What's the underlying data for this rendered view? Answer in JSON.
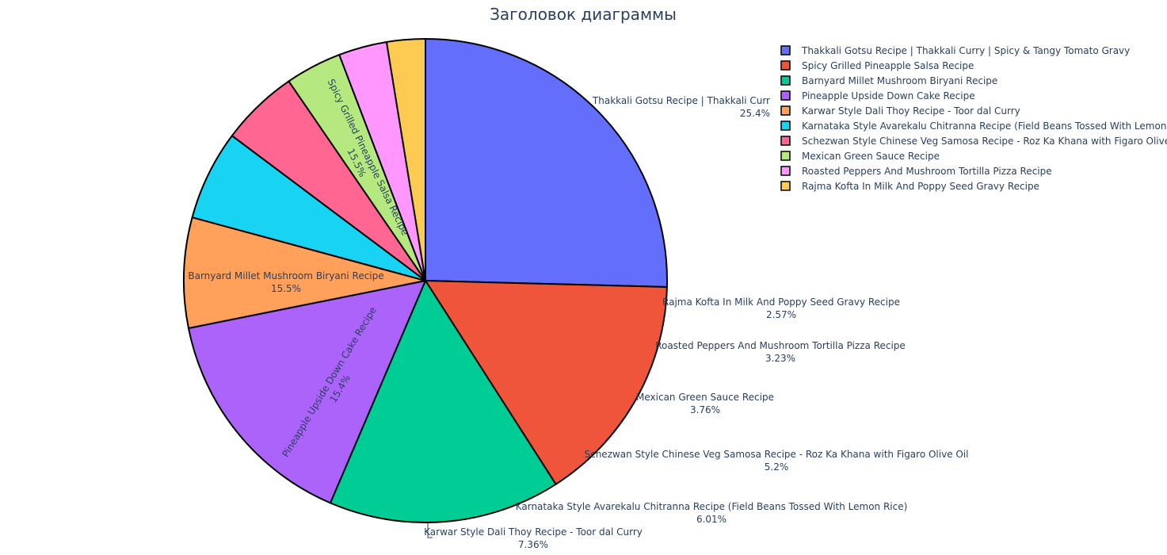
{
  "chart_data": {
    "type": "pie",
    "title": "Заголовок диаграммы",
    "categories": [
      "Thakkali Gotsu Recipe | Thakkali Curry | Spicy & Tangy Tomato Gravy",
      "Spicy Grilled Pineapple Salsa Recipe",
      "Barnyard Millet Mushroom Biryani Recipe",
      "Pineapple Upside Down Cake Recipe",
      "Karwar Style Dali Thoy Recipe - Toor dal Curry",
      "Karnataka Style Avarekalu Chitranna Recipe (Field Beans Tossed With Lemon Rice)",
      "Schezwan Style Chinese Veg Samosa Recipe - Roz Ka Khana with Figaro Olive Oil",
      "Mexican Green Sauce Recipe",
      "Roasted Peppers And Mushroom Tortilla Pizza Recipe",
      "Rajma Kofta In Milk And Poppy Seed Gravy Recipe"
    ],
    "values": [
      25.4,
      15.5,
      15.5,
      15.4,
      7.36,
      6.01,
      5.2,
      3.76,
      3.23,
      2.57
    ],
    "percent_labels": [
      "25.4%",
      "15.5%",
      "15.5%",
      "15.4%",
      "7.36%",
      "6.01%",
      "5.2%",
      "3.76%",
      "3.23%",
      "2.57%"
    ],
    "first_slice_label": "Thakkali Gotsu Recipe | Thakkali Curr",
    "colors": [
      "#636efa",
      "#EF553B",
      "#00cc96",
      "#ab63fa",
      "#FFA15A",
      "#19d3f3",
      "#FF6692",
      "#B6E880",
      "#FF97FF",
      "#FECB52"
    ],
    "slice_border_color": "#000000",
    "legend_position": "top-right",
    "direction": "clockwise",
    "start_angle": "top"
  }
}
